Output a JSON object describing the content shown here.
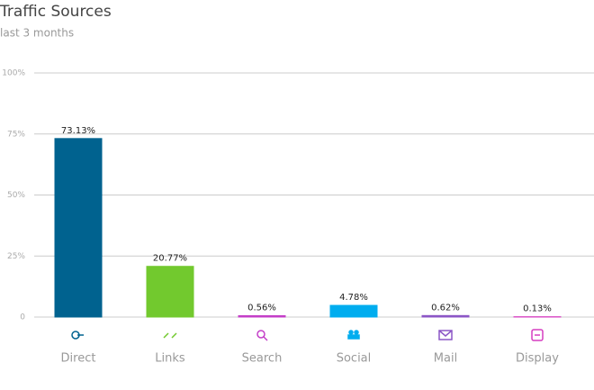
{
  "chart_data": {
    "type": "bar",
    "title": "Traffic Sources",
    "subtitle": "last 3 months",
    "categories": [
      "Direct",
      "Links",
      "Search",
      "Social",
      "Mail",
      "Display"
    ],
    "values": [
      73.13,
      20.77,
      0.56,
      4.78,
      0.62,
      0.13
    ],
    "value_labels": [
      "73.13%",
      "20.77%",
      "0.56%",
      "4.78%",
      "0.62%",
      "0.13%"
    ],
    "colors": [
      "#00628f",
      "#72c92e",
      "#c43fc8",
      "#00adef",
      "#8c56c6",
      "#d63ec0"
    ],
    "ylim": [
      0,
      100
    ],
    "yticks": [
      0,
      {
        "value": 25,
        "label": "25%"
      },
      {
        "value": 50,
        "label": "50%"
      },
      {
        "value": 75,
        "label": "75%"
      },
      {
        "value": 100,
        "label": "100%"
      }
    ],
    "grid": true
  }
}
